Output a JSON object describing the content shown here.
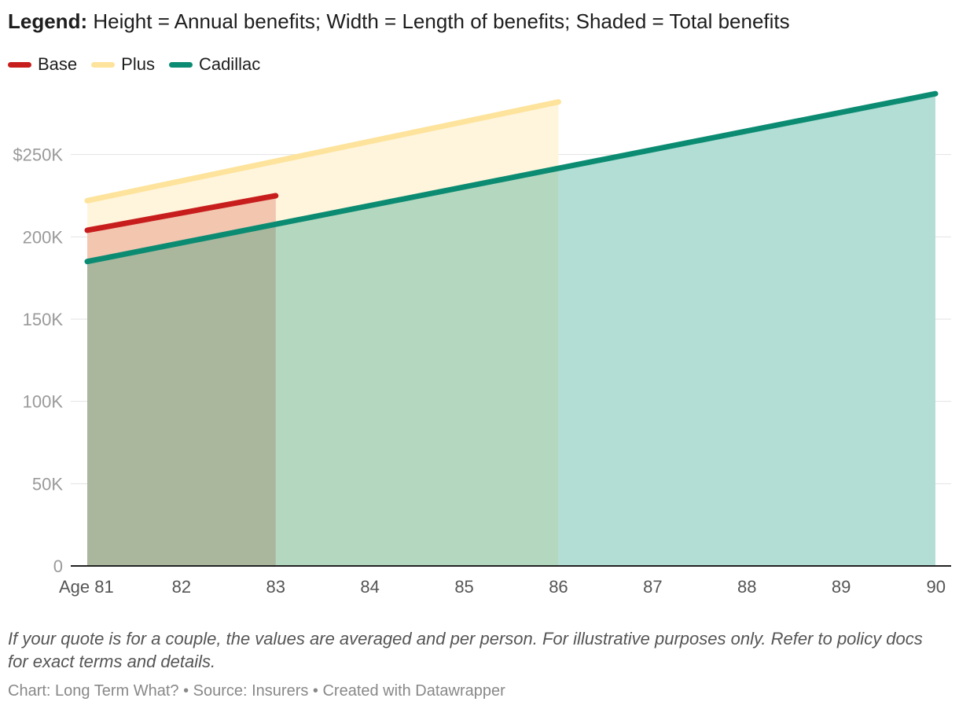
{
  "header": {
    "title_bold": "Legend:",
    "title_rest": " Height = Annual benefits; Width = Length of benefits; Shaded = Total benefits"
  },
  "legend": [
    {
      "label": "Base",
      "color": "#c71e1d"
    },
    {
      "label": "Plus",
      "color": "#fde39b"
    },
    {
      "label": "Cadillac",
      "color": "#0b8c72"
    }
  ],
  "chart_data": {
    "type": "area",
    "title": "Legend: Height = Annual benefits; Width = Length of benefits; Shaded = Total benefits",
    "xlabel": "",
    "ylabel": "",
    "xlim": [
      81,
      90
    ],
    "ylim": [
      0,
      300000
    ],
    "x_ticks": [
      81,
      82,
      83,
      84,
      85,
      86,
      87,
      88,
      89,
      90
    ],
    "x_tick_labels": [
      "Age 81",
      "82",
      "83",
      "84",
      "85",
      "86",
      "87",
      "88",
      "89",
      "90"
    ],
    "y_ticks": [
      0,
      50000,
      100000,
      150000,
      200000,
      250000
    ],
    "y_tick_labels": [
      "0",
      "50K",
      "100K",
      "150K",
      "200K",
      "$250K"
    ],
    "grid": true,
    "legend_position": "top-left",
    "series": [
      {
        "name": "Cadillac",
        "color": "#0b8c72",
        "fill": "#b2ded6",
        "x": [
          81,
          90
        ],
        "values": [
          185000,
          287000
        ]
      },
      {
        "name": "Plus",
        "color": "#fde39b",
        "fill": "#fff5dc",
        "x": [
          81,
          86
        ],
        "values": [
          222000,
          282000
        ]
      },
      {
        "name": "Base",
        "color": "#c71e1d",
        "fill": "#f3c6b0",
        "x": [
          81,
          83
        ],
        "values": [
          204000,
          225000
        ]
      }
    ]
  },
  "footer": {
    "note": "If your quote is for a couple, the values are averaged and per person. For illustrative purposes only. Refer to policy docs for exact terms and details.",
    "credits": "Chart: Long Term What? • Source: Insurers • Created with Datawrapper"
  }
}
